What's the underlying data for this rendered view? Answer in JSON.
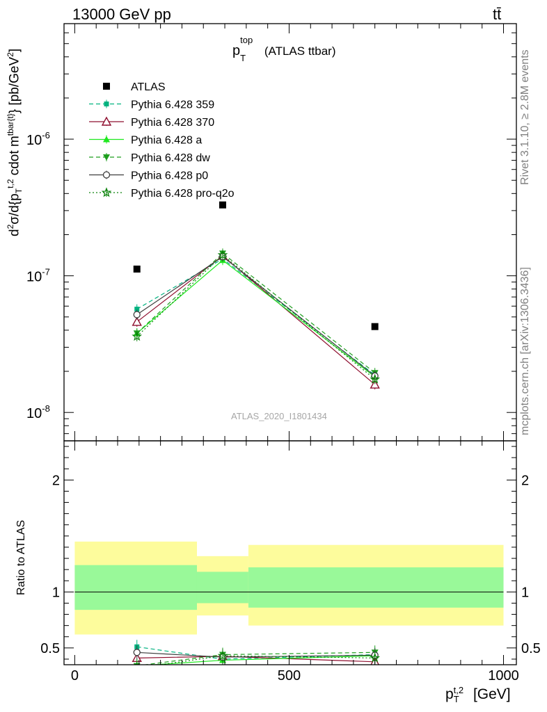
{
  "header": {
    "left": "13000 GeV pp",
    "right": "tt̄"
  },
  "side_labels": {
    "rivet": "Rivet 3.1.10, ≥ 2.8M events",
    "mcplots": "mcplots.cern.ch [arXiv:1306.3436]"
  },
  "plot_title": {
    "main": "p",
    "sup": "top",
    "sub": "T",
    "rest": " (ATLAS ttbar)"
  },
  "watermark": "ATLAS_2020_I1801434",
  "colors": {
    "band_inner": "#99f999",
    "band_outer": "#fdfc9c",
    "c359": "#00b27f",
    "c370": "#8e0e2e",
    "ca": "#1ee81e",
    "cdw": "#1e9e1e",
    "cp0": "#3d3d3d",
    "cpro": "#0a820a"
  },
  "chart_data": [
    {
      "type": "scatter",
      "title": "p_T^top (ATLAS ttbar)",
      "ylabel": "d²σ/d{p_T^t,2 cdot m^tbar{t}} [pb/GeV²]",
      "xlabel": "p_T^t,2 [GeV]",
      "yscale": "log",
      "xlim": [
        -25,
        1030
      ],
      "ylim": [
        6.2e-09,
        7e-06
      ],
      "ytick_labels": [
        "10^-8",
        "10^-7",
        "10^-6"
      ],
      "legend_placement": "top-left",
      "x": [
        145,
        345,
        700
      ],
      "series": [
        {
          "name": "ATLAS",
          "marker": "square",
          "values": [
            1.12e-07,
            3.3e-07,
            4.25e-08
          ]
        },
        {
          "name": "Pythia 6.428 359",
          "marker": "small-square",
          "style": "dashed",
          "values": [
            5.7e-08,
            1.33e-07,
            1.88e-08
          ]
        },
        {
          "name": "Pythia 6.428 370",
          "marker": "open-triangle",
          "style": "solid",
          "values": [
            4.6e-08,
            1.4e-07,
            1.6e-08
          ]
        },
        {
          "name": "Pythia 6.428 a",
          "marker": "triangle",
          "style": "solid",
          "values": [
            3.8e-08,
            1.3e-07,
            1.82e-08
          ]
        },
        {
          "name": "Pythia 6.428 dw",
          "marker": "triangle-down",
          "style": "dashed",
          "values": [
            3.8e-08,
            1.46e-07,
            1.95e-08
          ]
        },
        {
          "name": "Pythia 6.428 p0",
          "marker": "open-circle",
          "style": "solid",
          "values": [
            5.2e-08,
            1.38e-07,
            1.85e-08
          ]
        },
        {
          "name": "Pythia 6.428 pro-q2o",
          "marker": "star",
          "style": "dotted",
          "values": [
            3.6e-08,
            1.42e-07,
            1.75e-08
          ]
        }
      ]
    },
    {
      "type": "line",
      "ylabel": "Ratio to ATLAS",
      "xlabel": "p_T^t,2 [GeV]",
      "xlim": [
        -25,
        1030
      ],
      "ylim": [
        0.35,
        2.35
      ],
      "xtick_labels": [
        "0",
        "500",
        "1000"
      ],
      "ytick_labels": [
        "0.5",
        "1",
        "2"
      ],
      "bands": [
        {
          "xrange": [
            0,
            285
          ],
          "inner": [
            0.84,
            1.24
          ],
          "outer": [
            0.62,
            1.45
          ]
        },
        {
          "xrange": [
            285,
            405
          ],
          "inner": [
            0.9,
            1.18
          ],
          "outer": [
            0.79,
            1.32
          ]
        },
        {
          "xrange": [
            405,
            1000
          ],
          "inner": [
            0.86,
            1.22
          ],
          "outer": [
            0.7,
            1.42
          ]
        }
      ],
      "x": [
        145,
        345,
        700
      ],
      "series": [
        {
          "name": "Pythia 6.428 359",
          "values": [
            0.51,
            0.4,
            0.44
          ]
        },
        {
          "name": "Pythia 6.428 370",
          "values": [
            0.41,
            0.425,
            0.376
          ]
        },
        {
          "name": "Pythia 6.428 a",
          "values": [
            0.34,
            0.39,
            0.43
          ]
        },
        {
          "name": "Pythia 6.428 dw",
          "values": [
            0.34,
            0.44,
            0.46
          ]
        },
        {
          "name": "Pythia 6.428 p0",
          "values": [
            0.46,
            0.418,
            0.435
          ]
        },
        {
          "name": "Pythia 6.428 pro-q2o",
          "values": [
            0.32,
            0.43,
            0.41
          ]
        }
      ]
    }
  ]
}
